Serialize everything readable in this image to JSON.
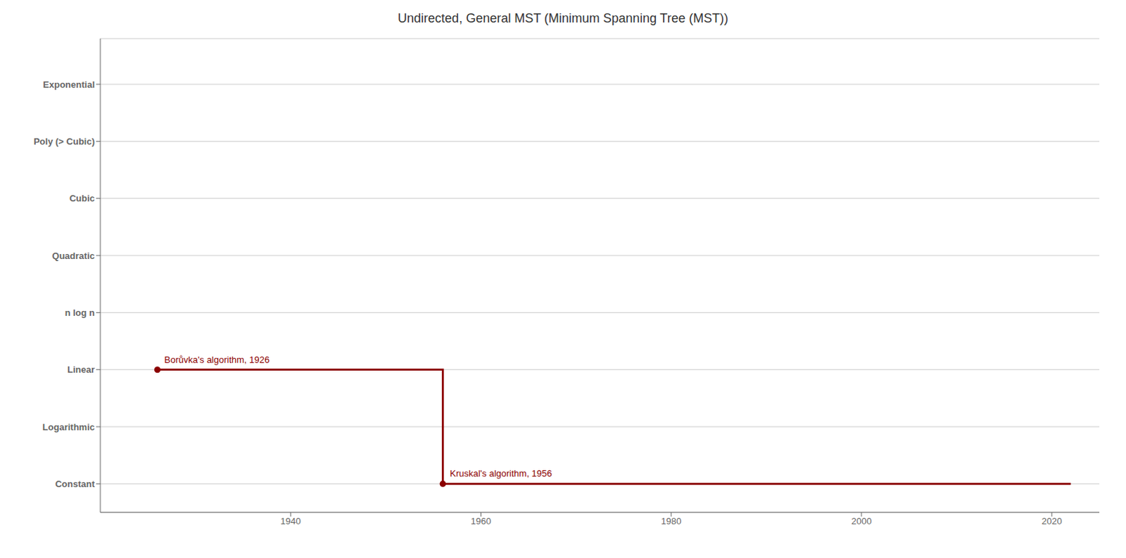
{
  "chart_data": {
    "type": "line",
    "title": "Undirected, General MST (Minimum Spanning Tree (MST))",
    "color": "#8B0000",
    "series": [
      {
        "type": "line",
        "x": [
          1926,
          1956,
          1956,
          2022
        ],
        "values": [
          2,
          2,
          0,
          0
        ]
      },
      {
        "type": "scatter",
        "x": [
          1926,
          1956
        ],
        "values": [
          2,
          0
        ]
      }
    ],
    "annotations": [
      {
        "text": "Borůvka's algorithm, 1926",
        "x": 1926,
        "y": 2
      },
      {
        "text": "Kruskal's algorithm, 1956",
        "x": 1956,
        "y": 0
      }
    ],
    "xlim": [
      1920,
      2025
    ],
    "xticks": [
      1940,
      1960,
      1980,
      2000,
      2020
    ],
    "ylim": [
      -0.5,
      7.8
    ],
    "yticks": [
      {
        "value": 0,
        "label": "Constant"
      },
      {
        "value": 1,
        "label": "Logarithmic"
      },
      {
        "value": 2,
        "label": "Linear"
      },
      {
        "value": 3,
        "label": "n log n"
      },
      {
        "value": 4,
        "label": "Quadratic"
      },
      {
        "value": 5,
        "label": "Cubic"
      },
      {
        "value": 6,
        "label": "Poly (> Cubic)"
      },
      {
        "value": 7,
        "label": "Exponential"
      }
    ],
    "grid": "y"
  }
}
